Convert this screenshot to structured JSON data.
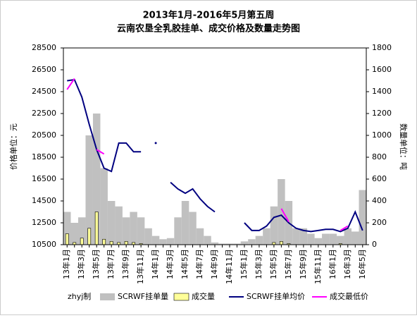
{
  "chart_data": {
    "type": "bar-line",
    "title": "2013年1月-2016年5月第五周",
    "subtitle": "云南农垦全乳胶挂单、成交价格及数量走势图",
    "y_label": "价格单位：元",
    "y2_label": "数量单位：吨",
    "source_note": "zhyj制",
    "categories": [
      "13年1月",
      null,
      "13年3月",
      null,
      "13年5月",
      null,
      "13年7月",
      null,
      "13年9月",
      null,
      "13年11月",
      null,
      "14年1月",
      null,
      "14年3月",
      null,
      "14年5月",
      null,
      "14年7月",
      null,
      "14年9月",
      null,
      "14年11月",
      null,
      "15年1月",
      null,
      "15年3月",
      null,
      "15年5月",
      null,
      "15年7月",
      null,
      "15年9月",
      null,
      "15年11月",
      null,
      "16年1月",
      null,
      "16年3月",
      null,
      "16年5月"
    ],
    "ylim": [
      10500,
      28500
    ],
    "yticks": [
      10500,
      12500,
      14500,
      16500,
      18500,
      20500,
      22500,
      24500,
      26500,
      28500
    ],
    "y2lim": [
      0,
      1800
    ],
    "y2ticks": [
      0,
      200,
      400,
      600,
      800,
      1000,
      1200,
      1400,
      1600,
      1800
    ],
    "series": [
      {
        "name": "SCRWF挂单量",
        "kind": "bar",
        "axis": "y2",
        "color": "#c0c0c0",
        "values": [
          300,
          200,
          250,
          1000,
          1200,
          700,
          400,
          350,
          250,
          300,
          250,
          150,
          80,
          50,
          60,
          250,
          400,
          300,
          150,
          80,
          20,
          10,
          10,
          10,
          30,
          50,
          80,
          150,
          350,
          600,
          400,
          150,
          150,
          100,
          60,
          100,
          100,
          80,
          150,
          120,
          500
        ]
      },
      {
        "name": "成交量",
        "kind": "bar",
        "axis": "y2",
        "color": "#ffff99",
        "values": [
          100,
          20,
          60,
          150,
          300,
          50,
          30,
          20,
          30,
          20,
          10,
          0,
          0,
          0,
          0,
          0,
          0,
          0,
          0,
          0,
          0,
          0,
          0,
          0,
          0,
          0,
          0,
          0,
          20,
          30,
          10,
          0,
          0,
          0,
          0,
          0,
          0,
          10,
          0,
          0,
          0
        ]
      },
      {
        "name": "SCRWF挂单均价",
        "kind": "line",
        "color": "#000080",
        "values": [
          25500,
          25600,
          24000,
          21500,
          19200,
          17500,
          17200,
          19800,
          19800,
          19000,
          19000,
          null,
          19800,
          null,
          16200,
          15600,
          15200,
          15600,
          14700,
          14000,
          13500,
          null,
          null,
          null,
          12500,
          11800,
          11800,
          12200,
          13000,
          13200,
          12500,
          12000,
          11800,
          11700,
          11800,
          11900,
          11900,
          11700,
          12000,
          13500,
          11800
        ]
      },
      {
        "name": "成交最低价",
        "kind": "line",
        "color": "#ff00ff",
        "values": [
          24700,
          25700,
          null,
          null,
          19200,
          18800,
          null,
          null,
          null,
          null,
          null,
          null,
          null,
          null,
          null,
          null,
          null,
          null,
          null,
          null,
          null,
          null,
          null,
          null,
          null,
          null,
          null,
          null,
          null,
          13800,
          12600,
          null,
          null,
          null,
          null,
          null,
          null,
          11800,
          12200,
          null,
          null
        ]
      }
    ]
  }
}
